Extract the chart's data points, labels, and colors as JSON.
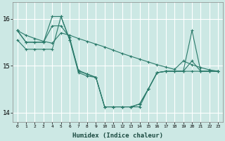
{
  "xlabel": "Humidex (Indice chaleur)",
  "ylabel": "",
  "background_color": "#cce8e4",
  "grid_color": "#ffffff",
  "line_color": "#2a7a6a",
  "xlim": [
    -0.5,
    23.5
  ],
  "ylim": [
    13.8,
    16.35
  ],
  "yticks": [
    14,
    15,
    16
  ],
  "xticks": [
    0,
    1,
    2,
    3,
    4,
    5,
    6,
    7,
    8,
    9,
    10,
    11,
    12,
    13,
    14,
    15,
    16,
    17,
    18,
    19,
    20,
    21,
    22,
    23
  ],
  "series": [
    [
      15.75,
      15.65,
      15.58,
      15.52,
      15.48,
      15.7,
      15.65,
      15.58,
      15.52,
      15.46,
      15.4,
      15.33,
      15.26,
      15.2,
      15.14,
      15.08,
      15.02,
      14.97,
      14.92,
      15.1,
      15.02,
      14.96,
      14.91,
      14.88
    ],
    [
      15.75,
      15.5,
      15.5,
      15.5,
      16.05,
      16.05,
      15.55,
      14.9,
      14.82,
      14.75,
      14.12,
      14.12,
      14.12,
      14.12,
      14.18,
      14.5,
      14.85,
      14.88,
      14.88,
      14.88,
      15.75,
      14.88,
      14.88,
      14.88
    ],
    [
      15.75,
      15.5,
      15.5,
      15.5,
      15.85,
      15.85,
      15.6,
      14.88,
      14.82,
      14.75,
      14.12,
      14.12,
      14.12,
      14.12,
      14.18,
      14.5,
      14.85,
      14.88,
      14.88,
      14.88,
      14.88,
      14.88,
      14.88,
      14.88
    ],
    [
      15.55,
      15.35,
      15.35,
      15.35,
      15.35,
      16.05,
      15.55,
      14.85,
      14.78,
      14.75,
      14.12,
      14.12,
      14.12,
      14.12,
      14.12,
      14.5,
      14.85,
      14.88,
      14.88,
      14.88,
      15.1,
      14.88,
      14.88,
      14.88
    ]
  ]
}
